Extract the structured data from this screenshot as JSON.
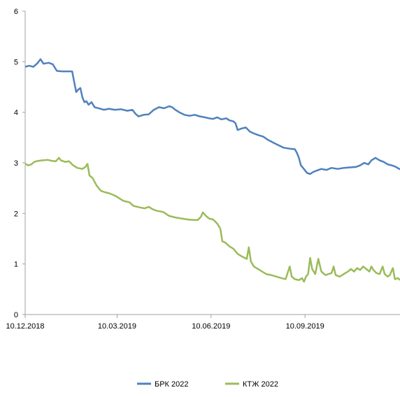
{
  "chart_data": {
    "type": "line",
    "title": "",
    "xlabel": "",
    "ylabel": "",
    "ylim": [
      0,
      6
    ],
    "yticks": [
      "0",
      "1",
      "2",
      "3",
      "4",
      "5",
      "6"
    ],
    "xlim": [
      "2018-12-10",
      "2019-12-12"
    ],
    "xticks": [
      {
        "date": "2018-12-10",
        "label": "10.12.2018"
      },
      {
        "date": "2019-03-10",
        "label": "10.03.2019"
      },
      {
        "date": "2019-06-10",
        "label": "10.06.2019"
      },
      {
        "date": "2019-09-10",
        "label": "10.09.2019"
      }
    ],
    "grid": false,
    "legend_position": "bottom",
    "series": [
      {
        "name": "БРК 2022",
        "color": "#4F81BD",
        "points": [
          [
            "2018-12-10",
            4.9
          ],
          [
            "2018-12-14",
            4.92
          ],
          [
            "2018-12-18",
            4.9
          ],
          [
            "2018-12-22",
            4.97
          ],
          [
            "2018-12-25",
            5.05
          ],
          [
            "2018-12-28",
            4.96
          ],
          [
            "2019-01-02",
            4.98
          ],
          [
            "2019-01-06",
            4.95
          ],
          [
            "2019-01-10",
            4.82
          ],
          [
            "2019-01-15",
            4.81
          ],
          [
            "2019-01-20",
            4.81
          ],
          [
            "2019-01-25",
            4.81
          ],
          [
            "2019-01-27",
            4.6
          ],
          [
            "2019-01-29",
            4.4
          ],
          [
            "2019-01-31",
            4.45
          ],
          [
            "2019-02-02",
            4.48
          ],
          [
            "2019-02-04",
            4.3
          ],
          [
            "2019-02-06",
            4.2
          ],
          [
            "2019-02-08",
            4.22
          ],
          [
            "2019-02-10",
            4.15
          ],
          [
            "2019-02-13",
            4.2
          ],
          [
            "2019-02-16",
            4.1
          ],
          [
            "2019-02-20",
            4.08
          ],
          [
            "2019-02-25",
            4.05
          ],
          [
            "2019-03-02",
            4.07
          ],
          [
            "2019-03-08",
            4.05
          ],
          [
            "2019-03-14",
            4.06
          ],
          [
            "2019-03-20",
            4.03
          ],
          [
            "2019-03-25",
            4.05
          ],
          [
            "2019-03-28",
            3.97
          ],
          [
            "2019-03-31",
            3.92
          ],
          [
            "2019-04-05",
            3.95
          ],
          [
            "2019-04-10",
            3.96
          ],
          [
            "2019-04-15",
            4.05
          ],
          [
            "2019-04-20",
            4.1
          ],
          [
            "2019-04-25",
            4.08
          ],
          [
            "2019-04-30",
            4.12
          ],
          [
            "2019-05-03",
            4.1
          ],
          [
            "2019-05-06",
            4.05
          ],
          [
            "2019-05-10",
            4.0
          ],
          [
            "2019-05-15",
            3.95
          ],
          [
            "2019-05-20",
            3.93
          ],
          [
            "2019-05-25",
            3.95
          ],
          [
            "2019-05-30",
            3.92
          ],
          [
            "2019-06-04",
            3.9
          ],
          [
            "2019-06-08",
            3.88
          ],
          [
            "2019-06-12",
            3.87
          ],
          [
            "2019-06-16",
            3.9
          ],
          [
            "2019-06-20",
            3.86
          ],
          [
            "2019-06-25",
            3.88
          ],
          [
            "2019-06-28",
            3.84
          ],
          [
            "2019-07-02",
            3.82
          ],
          [
            "2019-07-04",
            3.78
          ],
          [
            "2019-07-06",
            3.65
          ],
          [
            "2019-07-10",
            3.68
          ],
          [
            "2019-07-14",
            3.7
          ],
          [
            "2019-07-18",
            3.62
          ],
          [
            "2019-07-22",
            3.58
          ],
          [
            "2019-07-26",
            3.55
          ],
          [
            "2019-07-31",
            3.52
          ],
          [
            "2019-08-05",
            3.45
          ],
          [
            "2019-08-10",
            3.4
          ],
          [
            "2019-08-15",
            3.35
          ],
          [
            "2019-08-20",
            3.3
          ],
          [
            "2019-08-26",
            3.28
          ],
          [
            "2019-08-31",
            3.27
          ],
          [
            "2019-09-02",
            3.2
          ],
          [
            "2019-09-04",
            3.1
          ],
          [
            "2019-09-06",
            2.95
          ],
          [
            "2019-09-08",
            2.9
          ],
          [
            "2019-09-10",
            2.85
          ],
          [
            "2019-09-12",
            2.8
          ],
          [
            "2019-09-15",
            2.78
          ],
          [
            "2019-09-18",
            2.82
          ],
          [
            "2019-09-22",
            2.85
          ],
          [
            "2019-09-26",
            2.88
          ],
          [
            "2019-10-01",
            2.86
          ],
          [
            "2019-10-06",
            2.9
          ],
          [
            "2019-10-12",
            2.88
          ],
          [
            "2019-10-18",
            2.9
          ],
          [
            "2019-10-24",
            2.91
          ],
          [
            "2019-10-30",
            2.92
          ],
          [
            "2019-11-03",
            2.95
          ],
          [
            "2019-11-07",
            3.0
          ],
          [
            "2019-11-11",
            2.97
          ],
          [
            "2019-11-14",
            3.05
          ],
          [
            "2019-11-18",
            3.1
          ],
          [
            "2019-11-22",
            3.05
          ],
          [
            "2019-11-26",
            3.02
          ],
          [
            "2019-11-30",
            2.97
          ],
          [
            "2019-12-04",
            2.95
          ],
          [
            "2019-12-08",
            2.92
          ],
          [
            "2019-12-12",
            2.87
          ]
        ]
      },
      {
        "name": "КТЖ 2022",
        "color": "#9BBB59",
        "points": [
          [
            "2018-12-10",
            2.98
          ],
          [
            "2018-12-13",
            2.95
          ],
          [
            "2018-12-16",
            2.97
          ],
          [
            "2018-12-19",
            3.02
          ],
          [
            "2018-12-23",
            3.04
          ],
          [
            "2018-12-27",
            3.05
          ],
          [
            "2019-01-01",
            3.06
          ],
          [
            "2019-01-05",
            3.04
          ],
          [
            "2019-01-09",
            3.03
          ],
          [
            "2019-01-12",
            3.1
          ],
          [
            "2019-01-14",
            3.05
          ],
          [
            "2019-01-18",
            3.02
          ],
          [
            "2019-01-22",
            3.03
          ],
          [
            "2019-01-26",
            2.95
          ],
          [
            "2019-01-30",
            2.9
          ],
          [
            "2019-02-04",
            2.88
          ],
          [
            "2019-02-07",
            2.92
          ],
          [
            "2019-02-09",
            2.98
          ],
          [
            "2019-02-11",
            2.75
          ],
          [
            "2019-02-14",
            2.7
          ],
          [
            "2019-02-18",
            2.55
          ],
          [
            "2019-02-22",
            2.45
          ],
          [
            "2019-02-26",
            2.42
          ],
          [
            "2019-03-02",
            2.4
          ],
          [
            "2019-03-08",
            2.35
          ],
          [
            "2019-03-12",
            2.3
          ],
          [
            "2019-03-16",
            2.25
          ],
          [
            "2019-03-22",
            2.22
          ],
          [
            "2019-03-26",
            2.15
          ],
          [
            "2019-04-01",
            2.12
          ],
          [
            "2019-04-06",
            2.1
          ],
          [
            "2019-04-10",
            2.13
          ],
          [
            "2019-04-14",
            2.08
          ],
          [
            "2019-04-18",
            2.05
          ],
          [
            "2019-04-24",
            2.03
          ],
          [
            "2019-04-30",
            1.95
          ],
          [
            "2019-05-06",
            1.92
          ],
          [
            "2019-05-12",
            1.9
          ],
          [
            "2019-05-18",
            1.88
          ],
          [
            "2019-05-24",
            1.87
          ],
          [
            "2019-05-28",
            1.87
          ],
          [
            "2019-05-31",
            1.93
          ],
          [
            "2019-06-02",
            2.02
          ],
          [
            "2019-06-05",
            1.95
          ],
          [
            "2019-06-08",
            1.9
          ],
          [
            "2019-06-12",
            1.88
          ],
          [
            "2019-06-16",
            1.8
          ],
          [
            "2019-06-19",
            1.7
          ],
          [
            "2019-06-21",
            1.45
          ],
          [
            "2019-06-24",
            1.42
          ],
          [
            "2019-06-28",
            1.35
          ],
          [
            "2019-07-02",
            1.3
          ],
          [
            "2019-07-06",
            1.2
          ],
          [
            "2019-07-10",
            1.15
          ],
          [
            "2019-07-13",
            1.12
          ],
          [
            "2019-07-15",
            1.1
          ],
          [
            "2019-07-17",
            1.33
          ],
          [
            "2019-07-19",
            1.05
          ],
          [
            "2019-07-22",
            0.95
          ],
          [
            "2019-07-26",
            0.9
          ],
          [
            "2019-07-30",
            0.85
          ],
          [
            "2019-08-03",
            0.8
          ],
          [
            "2019-08-08",
            0.78
          ],
          [
            "2019-08-13",
            0.75
          ],
          [
            "2019-08-18",
            0.72
          ],
          [
            "2019-08-22",
            0.7
          ],
          [
            "2019-08-26",
            0.95
          ],
          [
            "2019-08-28",
            0.75
          ],
          [
            "2019-08-31",
            0.7
          ],
          [
            "2019-09-04",
            0.68
          ],
          [
            "2019-09-07",
            0.72
          ],
          [
            "2019-09-09",
            0.65
          ],
          [
            "2019-09-11",
            0.75
          ],
          [
            "2019-09-13",
            0.8
          ],
          [
            "2019-09-15",
            1.12
          ],
          [
            "2019-09-17",
            0.9
          ],
          [
            "2019-09-20",
            0.8
          ],
          [
            "2019-09-23",
            1.1
          ],
          [
            "2019-09-26",
            0.85
          ],
          [
            "2019-09-30",
            0.78
          ],
          [
            "2019-10-03",
            0.8
          ],
          [
            "2019-10-06",
            0.82
          ],
          [
            "2019-10-08",
            0.95
          ],
          [
            "2019-10-10",
            0.78
          ],
          [
            "2019-10-14",
            0.75
          ],
          [
            "2019-10-18",
            0.8
          ],
          [
            "2019-10-22",
            0.85
          ],
          [
            "2019-10-25",
            0.9
          ],
          [
            "2019-10-28",
            0.85
          ],
          [
            "2019-10-31",
            0.92
          ],
          [
            "2019-11-03",
            0.88
          ],
          [
            "2019-11-06",
            0.95
          ],
          [
            "2019-11-09",
            0.9
          ],
          [
            "2019-11-12",
            0.85
          ],
          [
            "2019-11-14",
            0.95
          ],
          [
            "2019-11-16",
            0.88
          ],
          [
            "2019-11-19",
            0.82
          ],
          [
            "2019-11-22",
            0.8
          ],
          [
            "2019-11-25",
            0.95
          ],
          [
            "2019-11-27",
            0.8
          ],
          [
            "2019-11-30",
            0.75
          ],
          [
            "2019-12-02",
            0.78
          ],
          [
            "2019-12-05",
            0.92
          ],
          [
            "2019-12-07",
            0.7
          ],
          [
            "2019-12-10",
            0.72
          ],
          [
            "2019-12-12",
            0.68
          ]
        ]
      }
    ]
  }
}
